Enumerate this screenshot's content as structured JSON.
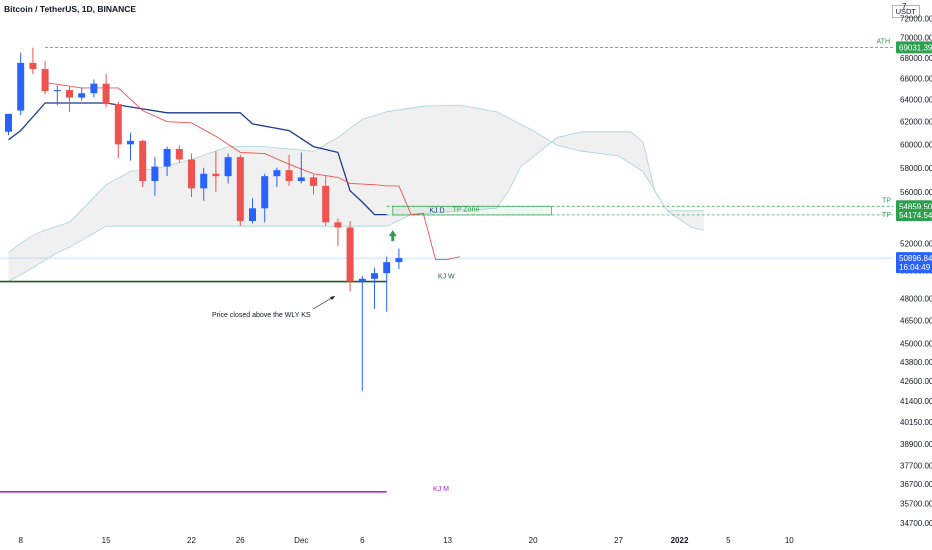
{
  "header": {
    "title": "Bitcoin / TetherUS, 1D, BINANCE",
    "unit": "USDT",
    "axis_top_partial": "7"
  },
  "colors": {
    "up": "#2962ff",
    "down": "#ef5350",
    "kijun_daily": "#1e3a8a",
    "tenkan": "#ef5350",
    "cloud": "#f0f0f0",
    "cloud_edge": "#a8d5d8",
    "kj_weekly": "#1b5e20",
    "kj_monthly": "#b224d6",
    "tp_green": "#2e9e4f",
    "price_line": "#b3d4f5",
    "arrow": "#2e9e4f"
  },
  "chart_data": {
    "type": "candlestick",
    "symbol": "Bitcoin / TetherUS, 1D, BINANCE",
    "ylim": [
      34300,
      73500
    ],
    "yscale": "log",
    "y_ticks": [
      34700,
      35700,
      36700,
      37700,
      38900,
      40150,
      41400,
      42600,
      43800,
      45000,
      46500,
      48000,
      50000,
      52000,
      54000,
      56000,
      58000,
      60000,
      62000,
      64000,
      66000,
      68000,
      70000,
      72000
    ],
    "y_tick_labels": [
      "34700.00",
      "35700.00",
      "36700.00",
      "37700.00",
      "38900.00",
      "40150.00",
      "41400.00",
      "42600.00",
      "43800.00",
      "45000.00",
      "46500.00",
      "48000.00",
      "50000.00",
      "52000.00",
      "54000.00",
      "56000.00",
      "58000.00",
      "60000.00",
      "62000.00",
      "64000.00",
      "66000.00",
      "68000.00",
      "70000.00",
      "72000.00"
    ],
    "x_tick_labels": [
      {
        "label": "8",
        "index": 1
      },
      {
        "label": "15",
        "index": 8
      },
      {
        "label": "22",
        "index": 15
      },
      {
        "label": "26",
        "index": 19
      },
      {
        "label": "Dec",
        "index": 24
      },
      {
        "label": "6",
        "index": 29
      },
      {
        "label": "13",
        "index": 36
      },
      {
        "label": "20",
        "index": 43
      },
      {
        "label": "27",
        "index": 50
      },
      {
        "label": "2022",
        "index": 55,
        "bold": true
      },
      {
        "label": "5",
        "index": 59
      },
      {
        "label": "10",
        "index": 64
      }
    ],
    "candles": [
      {
        "o": 61100,
        "h": 62700,
        "l": 60800,
        "c": 62700
      },
      {
        "o": 63000,
        "h": 68500,
        "l": 62600,
        "c": 67500
      },
      {
        "o": 67500,
        "h": 69000,
        "l": 66400,
        "c": 66900
      },
      {
        "o": 66900,
        "h": 67700,
        "l": 64500,
        "c": 64800
      },
      {
        "o": 64800,
        "h": 65300,
        "l": 63500,
        "c": 64900
      },
      {
        "o": 64900,
        "h": 65200,
        "l": 62900,
        "c": 64200
      },
      {
        "o": 64200,
        "h": 65100,
        "l": 63900,
        "c": 64600
      },
      {
        "o": 64600,
        "h": 65900,
        "l": 64200,
        "c": 65500
      },
      {
        "o": 65500,
        "h": 66400,
        "l": 63300,
        "c": 63600
      },
      {
        "o": 63600,
        "h": 63800,
        "l": 58800,
        "c": 60000
      },
      {
        "o": 60000,
        "h": 61000,
        "l": 58600,
        "c": 60300
      },
      {
        "o": 60300,
        "h": 60400,
        "l": 56400,
        "c": 56900
      },
      {
        "o": 56900,
        "h": 58900,
        "l": 55700,
        "c": 58100
      },
      {
        "o": 58100,
        "h": 59800,
        "l": 57300,
        "c": 59600
      },
      {
        "o": 59600,
        "h": 59900,
        "l": 58400,
        "c": 58700
      },
      {
        "o": 58700,
        "h": 59200,
        "l": 55600,
        "c": 56300
      },
      {
        "o": 56300,
        "h": 58000,
        "l": 55300,
        "c": 57500
      },
      {
        "o": 57500,
        "h": 59400,
        "l": 56000,
        "c": 57300
      },
      {
        "o": 57300,
        "h": 59200,
        "l": 56700,
        "c": 58900
      },
      {
        "o": 58900,
        "h": 59100,
        "l": 53300,
        "c": 53700
      },
      {
        "o": 53700,
        "h": 55500,
        "l": 53500,
        "c": 54700
      },
      {
        "o": 54700,
        "h": 57500,
        "l": 53600,
        "c": 57300
      },
      {
        "o": 57300,
        "h": 58000,
        "l": 56400,
        "c": 57800
      },
      {
        "o": 57800,
        "h": 59100,
        "l": 56500,
        "c": 56900
      },
      {
        "o": 56900,
        "h": 59300,
        "l": 56700,
        "c": 57200
      },
      {
        "o": 57200,
        "h": 57400,
        "l": 55800,
        "c": 56500
      },
      {
        "o": 56500,
        "h": 57400,
        "l": 53300,
        "c": 53600
      },
      {
        "o": 53600,
        "h": 53900,
        "l": 51800,
        "c": 53200
      },
      {
        "o": 53200,
        "h": 53700,
        "l": 48500,
        "c": 49200
      },
      {
        "o": 49200,
        "h": 49600,
        "l": 42000,
        "c": 49400
      },
      {
        "o": 49400,
        "h": 50200,
        "l": 47300,
        "c": 49800
      },
      {
        "o": 49800,
        "h": 51000,
        "l": 47100,
        "c": 50600
      },
      {
        "o": 50600,
        "h": 51600,
        "l": 50100,
        "c": 50900
      }
    ],
    "tenkan": [
      {
        "i": 3,
        "v": 65600
      },
      {
        "i": 6,
        "v": 65100
      },
      {
        "i": 9,
        "v": 65100
      },
      {
        "i": 11,
        "v": 63000
      },
      {
        "i": 13,
        "v": 62000
      },
      {
        "i": 15,
        "v": 61900
      },
      {
        "i": 17,
        "v": 60700
      },
      {
        "i": 19,
        "v": 59300
      },
      {
        "i": 21,
        "v": 59200
      },
      {
        "i": 23,
        "v": 58300
      },
      {
        "i": 25,
        "v": 57500
      },
      {
        "i": 27,
        "v": 57200
      },
      {
        "i": 28,
        "v": 56700
      },
      {
        "i": 30,
        "v": 56600
      },
      {
        "i": 31,
        "v": 56500
      },
      {
        "i": 32,
        "v": 56500
      },
      {
        "i": 33,
        "v": 54200
      },
      {
        "i": 34,
        "v": 54300
      },
      {
        "i": 35,
        "v": 50800
      },
      {
        "i": 36,
        "v": 50800
      },
      {
        "i": 37,
        "v": 51000
      }
    ],
    "kijun": [
      {
        "i": 0,
        "v": 60400
      },
      {
        "i": 1,
        "v": 61200
      },
      {
        "i": 3,
        "v": 63700
      },
      {
        "i": 8,
        "v": 63700
      },
      {
        "i": 13,
        "v": 62800
      },
      {
        "i": 19,
        "v": 62800
      },
      {
        "i": 20,
        "v": 61800
      },
      {
        "i": 23,
        "v": 61200
      },
      {
        "i": 25,
        "v": 59800
      },
      {
        "i": 27,
        "v": 59300
      },
      {
        "i": 28,
        "v": 56100
      },
      {
        "i": 29,
        "v": 55200
      },
      {
        "i": 30,
        "v": 54200
      },
      {
        "i": 31,
        "v": 54200
      }
    ],
    "senkou_a": [
      {
        "i": 0,
        "v": 51300
      },
      {
        "i": 1,
        "v": 52000
      },
      {
        "i": 2,
        "v": 52600
      },
      {
        "i": 3,
        "v": 53000
      },
      {
        "i": 5,
        "v": 53600
      },
      {
        "i": 8,
        "v": 56600
      },
      {
        "i": 10,
        "v": 57700
      },
      {
        "i": 12,
        "v": 57900
      },
      {
        "i": 15,
        "v": 58700
      },
      {
        "i": 18,
        "v": 59800
      },
      {
        "i": 21,
        "v": 59800
      },
      {
        "i": 25,
        "v": 59400
      },
      {
        "i": 27,
        "v": 60600
      },
      {
        "i": 29,
        "v": 62200
      },
      {
        "i": 31,
        "v": 62900
      },
      {
        "i": 34,
        "v": 63400
      },
      {
        "i": 37,
        "v": 63500
      },
      {
        "i": 40,
        "v": 62900
      },
      {
        "i": 43,
        "v": 61200
      },
      {
        "i": 45,
        "v": 59900
      },
      {
        "i": 47,
        "v": 59400
      },
      {
        "i": 50,
        "v": 59000
      },
      {
        "i": 52,
        "v": 57700
      },
      {
        "i": 54,
        "v": 54500
      },
      {
        "i": 56,
        "v": 53200
      },
      {
        "i": 57,
        "v": 53000
      }
    ],
    "senkou_b": [
      {
        "i": 0,
        "v": 49200
      },
      {
        "i": 2,
        "v": 50200
      },
      {
        "i": 4,
        "v": 51300
      },
      {
        "i": 5,
        "v": 51700
      },
      {
        "i": 8,
        "v": 53300
      },
      {
        "i": 18,
        "v": 53300
      },
      {
        "i": 31,
        "v": 53300
      },
      {
        "i": 33,
        "v": 54200
      },
      {
        "i": 40,
        "v": 54700
      },
      {
        "i": 41,
        "v": 56100
      },
      {
        "i": 42,
        "v": 58100
      },
      {
        "i": 45,
        "v": 60600
      },
      {
        "i": 47,
        "v": 61100
      },
      {
        "i": 51,
        "v": 61100
      },
      {
        "i": 52,
        "v": 60200
      },
      {
        "i": 53,
        "v": 56000
      },
      {
        "i": 54,
        "v": 54500
      },
      {
        "i": 57,
        "v": 54500
      }
    ],
    "kj_weekly": {
      "value": 49200,
      "label": "KJ W"
    },
    "kj_monthly": {
      "value": 36300,
      "label": "KJ M"
    },
    "kj_daily_label": "KJ D",
    "ath": {
      "value": 69031.39,
      "label": "ATH",
      "tag": "69031.39"
    },
    "tp_levels": [
      {
        "value": 54859.5,
        "label": "TP",
        "tag": "54859.50"
      },
      {
        "value": 54174.54,
        "label": "TP",
        "tag": "54174.54"
      }
    ],
    "tp_zone": {
      "top": 54859.5,
      "bottom": 54174.54,
      "label": "TP Zone"
    },
    "current_price": {
      "value": 50896.84,
      "tag": "50896.84",
      "countdown": "16:04:49"
    },
    "annotation": {
      "text": "Price closed above the WLY KS"
    }
  }
}
